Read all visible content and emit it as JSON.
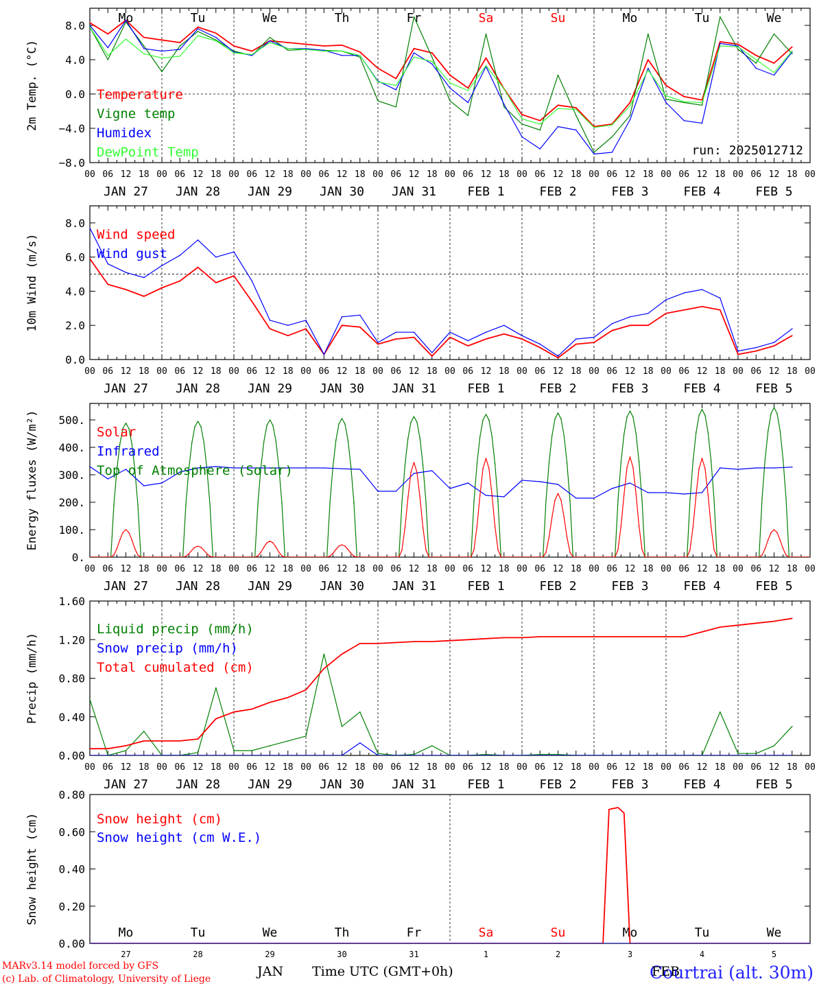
{
  "footer": {
    "credit_line1": "MARv3.14 model forced by GFS",
    "credit_line2": "(c) Lab. of Climatology, University of Liege",
    "station": "Courtrai (alt. 30m)",
    "xlabel": "Time UTC (GMT+0h)",
    "month_left": "JAN",
    "month_right": "FEB"
  },
  "colors": {
    "red": "#ff0000",
    "dark_green": "#008000",
    "blue": "#0000ff",
    "light_green": "#33ff33",
    "weekend": "#ff0000"
  },
  "axis_common": {
    "hour_labels": [
      "00",
      "06",
      "12",
      "18"
    ],
    "date_labels": [
      "JAN 27",
      "JAN 28",
      "JAN 29",
      "JAN 30",
      "JAN 31",
      "FEB  1",
      "FEB  2",
      "FEB  3",
      "FEB  4",
      "FEB  5"
    ],
    "weekdays": [
      "Mo",
      "Tu",
      "We",
      "Th",
      "Fr",
      "Sa",
      "Su",
      "Mo",
      "Tu",
      "We"
    ],
    "weekday_weekend": [
      false,
      false,
      false,
      false,
      false,
      true,
      true,
      false,
      false,
      false
    ],
    "bottom_day_numbers": [
      "27",
      "28",
      "29",
      "30",
      "31",
      "1",
      "2",
      "3",
      "4",
      "5"
    ],
    "days": 10
  },
  "chart_data": [
    {
      "type": "line",
      "ylabel": "2m Temp. (°C)",
      "ylim": [
        -8,
        10
      ],
      "yticks": [
        -8.0,
        -4.0,
        0.0,
        4.0,
        8.0
      ],
      "ytick_labels": [
        "−8.0",
        "−4.0",
        "0.0",
        "4.0",
        "8.0"
      ],
      "hline": 0,
      "run_label": "run: 2025012712",
      "legend": [
        {
          "name": "Temperature",
          "color": "#ff0000"
        },
        {
          "name": "Vigne temp",
          "color": "#008000"
        },
        {
          "name": "Humidex",
          "color": "#0000ff"
        },
        {
          "name": "DewPoint Temp",
          "color": "#33ff33"
        }
      ],
      "x_hours": [
        0,
        6,
        12,
        18,
        24,
        30,
        36,
        42,
        48,
        54,
        60,
        66,
        72,
        78,
        84,
        90,
        96,
        102,
        108,
        114,
        120,
        126,
        132,
        138,
        144,
        150,
        156,
        162,
        168,
        174,
        180,
        186,
        192,
        198,
        204,
        210,
        216,
        222,
        228,
        234
      ],
      "series": [
        {
          "name": "Temperature",
          "color": "#ff0000",
          "values": [
            8.3,
            7.0,
            8.6,
            6.6,
            6.3,
            6.0,
            7.8,
            7.1,
            5.6,
            5.0,
            6.2,
            6.0,
            5.8,
            5.6,
            5.7,
            4.9,
            3.0,
            1.8,
            5.3,
            4.8,
            2.2,
            0.7,
            4.2,
            0.6,
            -2.4,
            -3.1,
            -1.3,
            -1.6,
            -3.8,
            -3.5,
            -1.0,
            4.0,
            1.0,
            -0.3,
            -0.7,
            6.1,
            5.8,
            4.5,
            3.6,
            5.5
          ]
        },
        {
          "name": "Vigne temp",
          "color": "#008000",
          "values": [
            7.8,
            4.0,
            8.4,
            5.6,
            2.6,
            5.6,
            7.3,
            6.3,
            5.0,
            4.5,
            6.6,
            5.1,
            5.2,
            5.1,
            5.0,
            4.3,
            -0.8,
            -1.5,
            9.0,
            4.3,
            -0.8,
            -2.5,
            7.0,
            -1.5,
            -3.5,
            -4.2,
            2.2,
            -2.5,
            -6.8,
            -5.0,
            -2.5,
            7.0,
            -0.6,
            -1.0,
            -1.3,
            9.0,
            5.2,
            3.6,
            7.0,
            4.7
          ]
        },
        {
          "name": "Humidex",
          "color": "#0000ff",
          "values": [
            8.0,
            5.4,
            8.6,
            5.3,
            5.0,
            5.2,
            7.6,
            6.6,
            4.9,
            4.5,
            6.2,
            5.3,
            5.3,
            5.1,
            4.5,
            4.5,
            1.5,
            0.5,
            4.8,
            3.5,
            0.7,
            -1.0,
            3.2,
            -1.2,
            -5.0,
            -6.4,
            -3.8,
            -4.2,
            -7.0,
            -6.8,
            -3.0,
            3.0,
            -1.0,
            -3.1,
            -3.4,
            5.9,
            5.6,
            3.0,
            2.2,
            4.9
          ]
        },
        {
          "name": "DewPoint Temp",
          "color": "#33ff33",
          "values": [
            7.8,
            4.5,
            6.4,
            4.7,
            4.2,
            4.4,
            6.8,
            6.2,
            4.8,
            4.6,
            6.0,
            5.3,
            5.2,
            5.0,
            5.0,
            4.5,
            1.4,
            1.0,
            4.3,
            3.8,
            1.3,
            0.4,
            3.3,
            0.6,
            -2.9,
            -3.5,
            -1.7,
            -1.8,
            -3.9,
            -3.6,
            -1.4,
            2.8,
            -0.2,
            -0.9,
            -1.0,
            5.6,
            5.5,
            4.0,
            2.5,
            5.0
          ]
        }
      ]
    },
    {
      "type": "line",
      "ylabel": "10m Wind (m/s)",
      "ylim": [
        0,
        9
      ],
      "yticks": [
        0.0,
        2.0,
        4.0,
        6.0,
        8.0
      ],
      "ytick_labels": [
        "0.0",
        "2.0",
        "4.0",
        "6.0",
        "8.0"
      ],
      "hline": 5,
      "legend": [
        {
          "name": "Wind speed",
          "color": "#ff0000"
        },
        {
          "name": "Wind gust",
          "color": "#0000ff"
        }
      ],
      "x_hours": [
        0,
        6,
        12,
        18,
        24,
        30,
        36,
        42,
        48,
        54,
        60,
        66,
        72,
        78,
        84,
        90,
        96,
        102,
        108,
        114,
        120,
        126,
        132,
        138,
        144,
        150,
        156,
        162,
        168,
        174,
        180,
        186,
        192,
        198,
        204,
        210,
        216,
        222,
        228,
        234
      ],
      "series": [
        {
          "name": "Wind speed",
          "color": "#ff0000",
          "values": [
            5.9,
            4.4,
            4.1,
            3.7,
            4.2,
            4.6,
            5.4,
            4.5,
            4.9,
            3.4,
            1.8,
            1.4,
            1.8,
            0.3,
            2.0,
            1.9,
            0.9,
            1.2,
            1.3,
            0.2,
            1.3,
            0.8,
            1.2,
            1.5,
            1.2,
            0.7,
            0.1,
            0.9,
            1.0,
            1.7,
            2.0,
            2.0,
            2.7,
            2.9,
            3.1,
            2.9,
            0.3,
            0.5,
            0.8,
            1.4
          ]
        },
        {
          "name": "Wind gust",
          "color": "#0000ff",
          "values": [
            7.7,
            5.6,
            5.1,
            4.8,
            5.5,
            6.1,
            7.0,
            6.0,
            6.3,
            4.6,
            2.3,
            2.0,
            2.3,
            0.3,
            2.5,
            2.6,
            1.0,
            1.6,
            1.6,
            0.4,
            1.6,
            1.1,
            1.6,
            2.0,
            1.4,
            0.9,
            0.2,
            1.2,
            1.3,
            2.1,
            2.5,
            2.7,
            3.5,
            3.9,
            4.1,
            3.6,
            0.5,
            0.7,
            1.0,
            1.8
          ]
        }
      ]
    },
    {
      "type": "line",
      "ylabel": "Energy fluxes (W/m²)",
      "ylim": [
        0,
        560
      ],
      "yticks": [
        0,
        100,
        200,
        300,
        400,
        500
      ],
      "ytick_labels": [
        "0.",
        "100.",
        "200.",
        "300.",
        "400.",
        "500."
      ],
      "legend": [
        {
          "name": "Solar",
          "color": "#ff0000"
        },
        {
          "name": "Infrared",
          "color": "#0000ff"
        },
        {
          "name": "Top of Atmosphere (Solar)",
          "color": "#008000"
        }
      ],
      "diurnal": {
        "sunrise_hour": 7,
        "sunset_hour": 17,
        "toa_peak": [
          488,
          495,
          500,
          505,
          512,
          520,
          525,
          532,
          538,
          545
        ],
        "solar_peak": [
          100,
          40,
          58,
          45,
          345,
          360,
          232,
          365,
          360,
          100
        ]
      },
      "series": [
        {
          "name": "Infrared",
          "color": "#0000ff",
          "x_hours": [
            0,
            6,
            12,
            18,
            24,
            30,
            36,
            42,
            48,
            54,
            60,
            66,
            72,
            78,
            84,
            90,
            96,
            102,
            108,
            114,
            120,
            126,
            132,
            138,
            144,
            150,
            156,
            162,
            168,
            174,
            180,
            186,
            192,
            198,
            204,
            210,
            216,
            222,
            228,
            234
          ],
          "values": [
            330,
            285,
            320,
            260,
            270,
            310,
            325,
            330,
            325,
            325,
            325,
            325,
            325,
            325,
            322,
            320,
            240,
            240,
            305,
            315,
            250,
            270,
            225,
            220,
            280,
            275,
            265,
            215,
            215,
            250,
            270,
            235,
            235,
            230,
            235,
            325,
            320,
            325,
            325,
            328
          ]
        }
      ]
    },
    {
      "type": "line",
      "ylabel": "Precip (mm/h)",
      "ylim": [
        0,
        1.6
      ],
      "yticks": [
        0.0,
        0.4,
        0.8,
        1.2,
        1.6
      ],
      "ytick_labels": [
        "0.00",
        "0.40",
        "0.80",
        "1.20",
        "1.60"
      ],
      "legend": [
        {
          "name": "Liquid precip (mm/h)",
          "color": "#008000"
        },
        {
          "name": "Snow precip (mm/h)",
          "color": "#0000ff"
        },
        {
          "name": "Total cumulated (cm)",
          "color": "#ff0000"
        }
      ],
      "x_hours": [
        0,
        6,
        12,
        18,
        24,
        30,
        36,
        42,
        48,
        54,
        60,
        66,
        72,
        78,
        84,
        90,
        96,
        102,
        108,
        114,
        120,
        126,
        132,
        138,
        144,
        150,
        156,
        162,
        168,
        174,
        180,
        186,
        192,
        198,
        204,
        210,
        216,
        222,
        228,
        234
      ],
      "series": [
        {
          "name": "Liquid precip (mm/h)",
          "color": "#008000",
          "values": [
            0.58,
            0.0,
            0.05,
            0.25,
            0.0,
            0.0,
            0.03,
            0.7,
            0.05,
            0.05,
            0.1,
            0.15,
            0.2,
            1.05,
            0.3,
            0.45,
            0.02,
            0.0,
            0.01,
            0.1,
            0.0,
            0.0,
            0.01,
            0.0,
            0.0,
            0.01,
            0.01,
            0.0,
            0.0,
            0.0,
            0.0,
            0.0,
            0.0,
            0.0,
            0.0,
            0.45,
            0.02,
            0.02,
            0.1,
            0.3
          ]
        },
        {
          "name": "Snow precip (mm/h)",
          "color": "#0000ff",
          "values": [
            0.0,
            0.0,
            0.0,
            0.0,
            0.0,
            0.0,
            0.0,
            0.0,
            0.0,
            0.0,
            0.0,
            0.0,
            0.0,
            0.0,
            0.0,
            0.13,
            0.0,
            0.0,
            0.0,
            0.0,
            0.0,
            0.0,
            0.0,
            0.0,
            0.0,
            0.0,
            0.0,
            0.0,
            0.0,
            0.0,
            0.0,
            0.0,
            0.0,
            0.0,
            0.0,
            0.0,
            0.0,
            0.0,
            0.0,
            0.0
          ]
        },
        {
          "name": "Total cumulated (cm)",
          "color": "#ff0000",
          "values": [
            0.07,
            0.07,
            0.1,
            0.15,
            0.15,
            0.15,
            0.17,
            0.38,
            0.45,
            0.48,
            0.55,
            0.6,
            0.68,
            0.9,
            1.05,
            1.16,
            1.16,
            1.17,
            1.18,
            1.18,
            1.19,
            1.2,
            1.21,
            1.22,
            1.22,
            1.23,
            1.23,
            1.23,
            1.23,
            1.23,
            1.23,
            1.23,
            1.23,
            1.23,
            1.28,
            1.33,
            1.35,
            1.37,
            1.39,
            1.42
          ]
        }
      ]
    },
    {
      "type": "line",
      "ylabel": "Snow height (cm)",
      "ylim": [
        0,
        0.8
      ],
      "yticks": [
        0.0,
        0.2,
        0.4,
        0.6,
        0.8
      ],
      "ytick_labels": [
        "0.00",
        "0.20",
        "0.40",
        "0.60",
        "0.80"
      ],
      "legend": [
        {
          "name": "Snow height (cm)",
          "color": "#ff0000"
        },
        {
          "name": "Snow height (cm W.E.)",
          "color": "#0000ff"
        }
      ],
      "series": [
        {
          "name": "Snow height (cm)",
          "color": "#ff0000",
          "x_hours": [
            0,
            168,
            171,
            173,
            176,
            178,
            180,
            240
          ],
          "values": [
            0,
            0,
            0,
            0.72,
            0.73,
            0.7,
            0,
            0
          ]
        },
        {
          "name": "Snow height (cm W.E.)",
          "color": "#0000ff",
          "x_hours": [
            0,
            240
          ],
          "values": [
            0,
            0
          ]
        }
      ]
    }
  ]
}
